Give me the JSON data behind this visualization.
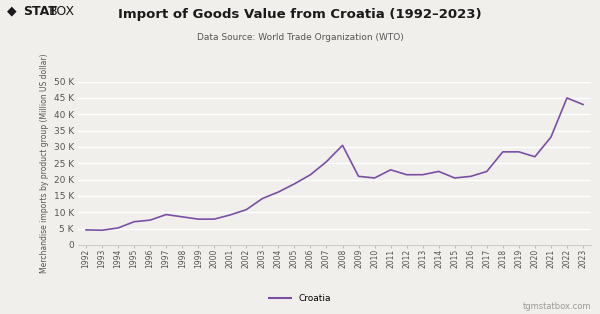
{
  "title": "Import of Goods Value from Croatia (1992–2023)",
  "subtitle": "Data Source: World Trade Organization (WTO)",
  "ylabel": "Merchandise imports by product group (Million US dollar)",
  "legend_label": "Croatia",
  "line_color": "#7B4FA6",
  "background_color": "#f0efeb",
  "years": [
    1992,
    1993,
    1994,
    1995,
    1996,
    1997,
    1998,
    1999,
    2000,
    2001,
    2002,
    2003,
    2004,
    2005,
    2006,
    2007,
    2008,
    2009,
    2010,
    2011,
    2012,
    2013,
    2014,
    2015,
    2016,
    2017,
    2018,
    2019,
    2020,
    2021,
    2022,
    2023
  ],
  "values": [
    4600,
    4500,
    5200,
    7100,
    7600,
    9300,
    8600,
    7900,
    7900,
    9200,
    10800,
    14200,
    16200,
    18700,
    21500,
    25500,
    30500,
    21000,
    20500,
    23000,
    21500,
    21500,
    22500,
    20500,
    21000,
    22500,
    28500,
    28500,
    27000,
    33000,
    45000,
    43000
  ],
  "ylim": [
    0,
    50000
  ],
  "yticks": [
    0,
    5000,
    10000,
    15000,
    20000,
    25000,
    30000,
    35000,
    40000,
    45000,
    50000
  ],
  "ytick_labels": [
    "0",
    "5 K",
    "10 K",
    "15 K",
    "20 K",
    "25 K",
    "30 K",
    "35 K",
    "40 K",
    "45 K",
    "50 K"
  ],
  "watermark": "tgmstatbox.com",
  "grid_color": "#ffffff",
  "spine_color": "#cccccc",
  "tick_color": "#aaaaaa",
  "text_color": "#555555",
  "title_color": "#1a1a1a"
}
